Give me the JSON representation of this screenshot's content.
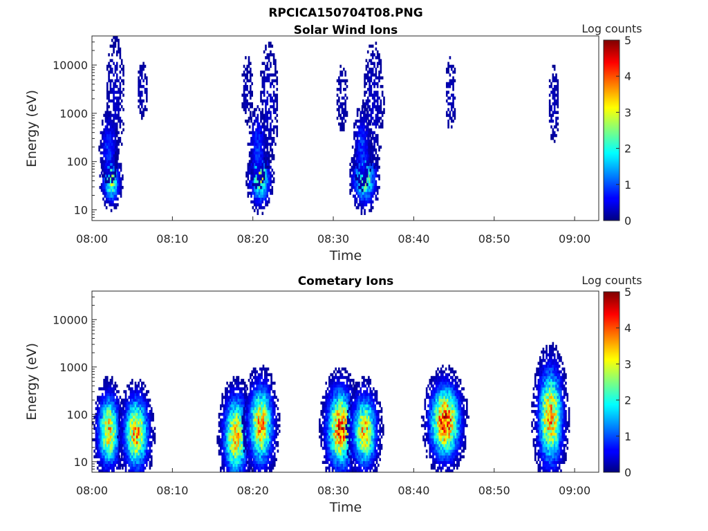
{
  "figure_title": "RPCICA150704T08.PNG",
  "chart_data": [
    {
      "type": "heatmap",
      "title": "Solar Wind Ions",
      "xlabel": "Time",
      "ylabel": "Energy (eV)",
      "xlim": [
        "08:00",
        "09:03"
      ],
      "xticks": [
        "08:00",
        "08:10",
        "08:20",
        "08:30",
        "08:40",
        "08:50",
        "09:00"
      ],
      "yscale": "log",
      "ylim": [
        6,
        40000
      ],
      "yticks": [
        "10",
        "100",
        "1000",
        "10000"
      ],
      "colorbar": {
        "label": "Log counts",
        "min": 0,
        "max": 5,
        "ticks": [
          "0",
          "1",
          "2",
          "3",
          "4",
          "5"
        ],
        "colormap": "jet"
      },
      "clusters": [
        {
          "t": 2.3,
          "dt": 0.6,
          "e": 40,
          "spread_dec": 0.25,
          "peak": 2.6
        },
        {
          "t": 2.8,
          "dt": 0.8,
          "e": 2000,
          "spread_dec": 0.9,
          "peak": 0.35
        },
        {
          "t": 2.0,
          "dt": 0.6,
          "e": 200,
          "spread_dec": 0.4,
          "peak": 0.9
        },
        {
          "t": 6.2,
          "dt": 0.5,
          "e": 3000,
          "spread_dec": 0.45,
          "peak": 0.3
        },
        {
          "t": 20.8,
          "dt": 0.7,
          "e": 45,
          "spread_dec": 0.3,
          "peak": 2.6
        },
        {
          "t": 21.9,
          "dt": 0.8,
          "e": 1500,
          "spread_dec": 0.9,
          "peak": 0.35
        },
        {
          "t": 19.2,
          "dt": 0.6,
          "e": 3000,
          "spread_dec": 0.6,
          "peak": 0.25
        },
        {
          "t": 20.5,
          "dt": 0.6,
          "e": 200,
          "spread_dec": 0.45,
          "peak": 0.9
        },
        {
          "t": 33.8,
          "dt": 0.8,
          "e": 45,
          "spread_dec": 0.3,
          "peak": 2.6
        },
        {
          "t": 34.9,
          "dt": 0.9,
          "e": 1500,
          "spread_dec": 0.9,
          "peak": 0.35
        },
        {
          "t": 31.0,
          "dt": 0.6,
          "e": 2000,
          "spread_dec": 0.6,
          "peak": 0.25
        },
        {
          "t": 33.5,
          "dt": 0.6,
          "e": 200,
          "spread_dec": 0.45,
          "peak": 0.9
        },
        {
          "t": 44.5,
          "dt": 0.5,
          "e": 2500,
          "spread_dec": 0.6,
          "peak": 0.3
        },
        {
          "t": 57.3,
          "dt": 0.5,
          "e": 1500,
          "spread_dec": 0.6,
          "peak": 0.3
        }
      ]
    },
    {
      "type": "heatmap",
      "title": "Cometary Ions",
      "xlabel": "Time",
      "ylabel": "Energy (eV)",
      "xlim": [
        "08:00",
        "09:03"
      ],
      "xticks": [
        "08:00",
        "08:10",
        "08:20",
        "08:30",
        "08:40",
        "08:50",
        "09:00"
      ],
      "yscale": "log",
      "ylim": [
        6,
        40000
      ],
      "yticks": [
        "10",
        "100",
        "1000",
        "10000"
      ],
      "colorbar": {
        "label": "Log counts",
        "min": 0,
        "max": 5,
        "ticks": [
          "0",
          "1",
          "2",
          "3",
          "4",
          "5"
        ],
        "colormap": "jet"
      },
      "clusters": [
        {
          "t": 2.0,
          "dt": 0.8,
          "e": 45,
          "spread_dec": 0.45,
          "peak": 3.3
        },
        {
          "t": 5.4,
          "dt": 0.9,
          "e": 40,
          "spread_dec": 0.45,
          "peak": 3.5
        },
        {
          "t": 17.8,
          "dt": 0.9,
          "e": 35,
          "spread_dec": 0.5,
          "peak": 3.4
        },
        {
          "t": 20.9,
          "dt": 0.9,
          "e": 60,
          "spread_dec": 0.5,
          "peak": 3.5
        },
        {
          "t": 30.8,
          "dt": 1.0,
          "e": 50,
          "spread_dec": 0.5,
          "peak": 3.9
        },
        {
          "t": 33.8,
          "dt": 0.9,
          "e": 45,
          "spread_dec": 0.45,
          "peak": 3.3
        },
        {
          "t": 43.8,
          "dt": 1.1,
          "e": 70,
          "spread_dec": 0.45,
          "peak": 4.2
        },
        {
          "t": 56.9,
          "dt": 0.9,
          "e": 90,
          "spread_dec": 0.6,
          "peak": 3.6
        }
      ]
    }
  ]
}
